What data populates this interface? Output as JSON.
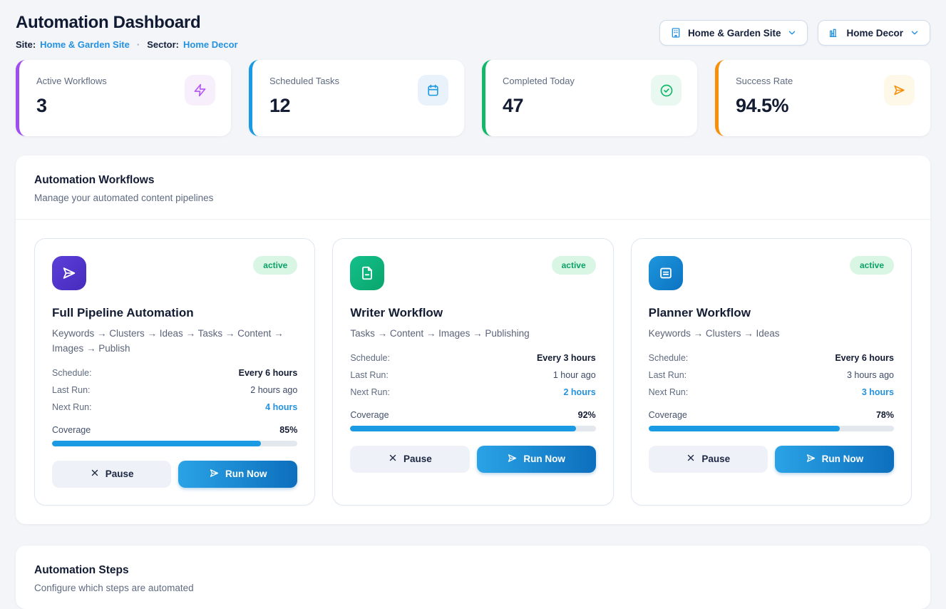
{
  "header": {
    "title": "Automation Dashboard",
    "site_label": "Site:",
    "site_value": "Home & Garden Site",
    "separator": "·",
    "sector_label": "Sector:",
    "sector_value": "Home Decor",
    "site_dropdown_label": "Home & Garden Site",
    "sector_dropdown_label": "Home Decor"
  },
  "stats": [
    {
      "label": "Active Workflows",
      "value": "3",
      "icon": "lightning-icon",
      "accent_color": "#a04df0"
    },
    {
      "label": "Scheduled Tasks",
      "value": "12",
      "icon": "calendar-icon",
      "accent_color": "#1a9ae2"
    },
    {
      "label": "Completed Today",
      "value": "47",
      "icon": "check-circle-icon",
      "accent_color": "#12b76a"
    },
    {
      "label": "Success Rate",
      "value": "94.5%",
      "icon": "send-icon",
      "accent_color": "#f79009"
    }
  ],
  "workflows_section": {
    "title": "Automation Workflows",
    "subtitle": "Manage your automated content pipelines"
  },
  "workflow_labels": {
    "schedule": "Schedule:",
    "last_run": "Last Run:",
    "next_run": "Next Run:",
    "coverage": "Coverage",
    "pause": "Pause",
    "run_now": "Run Now"
  },
  "workflows": [
    {
      "name": "Full Pipeline Automation",
      "description": "Keywords → Clusters → Ideas → Tasks → Content → Images → Publish",
      "status": "active",
      "schedule": "Every 6 hours",
      "last_run": "2 hours ago",
      "next_run": "4 hours",
      "coverage_pct": 85,
      "coverage_label": "85%",
      "icon": "send-icon",
      "tile_color": "#4f35cc"
    },
    {
      "name": "Writer Workflow",
      "description": "Tasks → Content → Images → Publishing",
      "status": "active",
      "schedule": "Every 3 hours",
      "last_run": "1 hour ago",
      "next_run": "2 hours",
      "coverage_pct": 92,
      "coverage_label": "92%",
      "icon": "document-icon",
      "tile_color": "#10b77f"
    },
    {
      "name": "Planner Workflow",
      "description": "Keywords → Clusters → Ideas",
      "status": "active",
      "schedule": "Every 6 hours",
      "last_run": "3 hours ago",
      "next_run": "3 hours",
      "coverage_pct": 78,
      "coverage_label": "78%",
      "icon": "list-document-icon",
      "tile_color": "#1687d2"
    }
  ],
  "steps_section": {
    "title": "Automation Steps",
    "subtitle": "Configure which steps are automated"
  },
  "colors": {
    "page_background": "#f3f5f9",
    "link_blue": "#2492df",
    "progress_blue": "#1a9ae2",
    "badge_green_bg": "#d9f6e5",
    "badge_green_text": "#0ca166",
    "run_button_gradient_start": "#2aa3e6",
    "run_button_gradient_end": "#0d6fbd"
  }
}
